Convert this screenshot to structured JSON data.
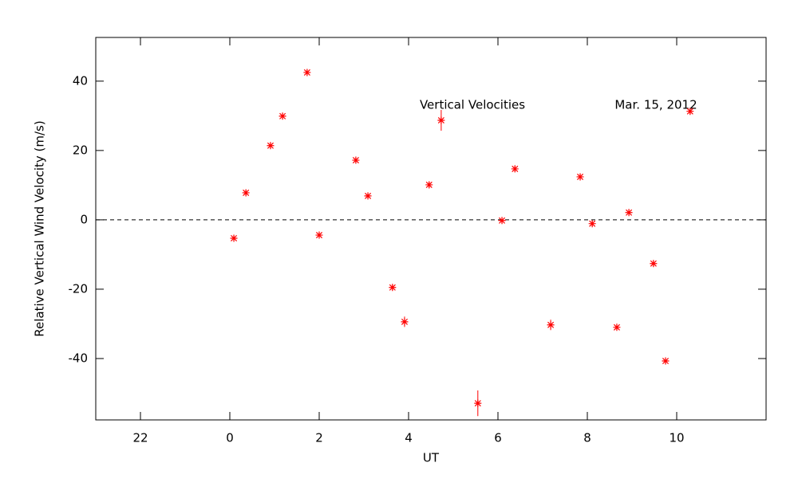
{
  "chart_data": {
    "type": "scatter",
    "xlabel": "UT",
    "ylabel": "Relative Vertical Wind Velocity (m/s)",
    "annotations": [
      "Vertical Velocities",
      "Mar. 15, 2012"
    ],
    "xlim": [
      -3,
      12
    ],
    "xticks": [
      {
        "value": -2,
        "label": "22"
      },
      0,
      2,
      4,
      6,
      8,
      10
    ],
    "ylim": [
      -57.7,
      52.6
    ],
    "yticks": [
      -40,
      -20,
      0,
      20,
      40
    ],
    "color": "#ff0000",
    "zero_line": true,
    "series": [
      {
        "name": "Vertical Velocities",
        "color": "#ff0000",
        "x": [
          0.09,
          0.36,
          0.91,
          1.18,
          1.73,
          2.0,
          2.82,
          3.09,
          3.64,
          3.91,
          4.46,
          4.73,
          5.55,
          6.09,
          6.38,
          7.18,
          7.84,
          8.11,
          8.66,
          8.93,
          9.48,
          9.75,
          10.3
        ],
        "values": [
          -5.3,
          7.8,
          21.4,
          29.9,
          42.5,
          -4.4,
          17.2,
          6.9,
          -19.5,
          -29.4,
          10.1,
          28.7,
          -52.9,
          -0.2,
          14.7,
          -30.3,
          12.4,
          -1.1,
          -31.0,
          2.1,
          -12.6,
          -40.7,
          31.3
        ],
        "errors": [
          0.8,
          0.8,
          0.8,
          0.8,
          0.8,
          0.8,
          0.8,
          0.8,
          0.8,
          1.5,
          0.8,
          3,
          3.7,
          0.8,
          0.8,
          1.5,
          0.8,
          0.8,
          0.8,
          0.8,
          0.8,
          0.8,
          0.8
        ]
      }
    ]
  }
}
